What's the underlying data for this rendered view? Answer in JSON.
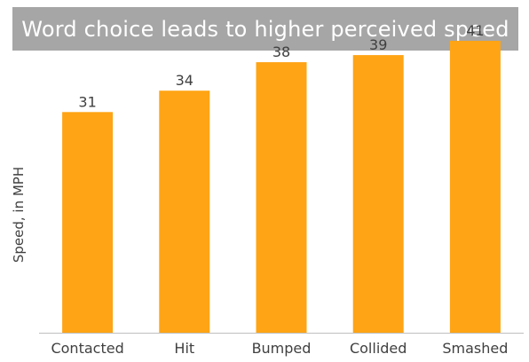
{
  "chart_data": {
    "type": "bar",
    "title": "Word choice leads to higher perceived speed",
    "xlabel": "",
    "ylabel": "Speed, in MPH",
    "categories": [
      "Contacted",
      "Hit",
      "Bumped",
      "Collided",
      "Smashed"
    ],
    "values": [
      31,
      34,
      38,
      39,
      41
    ],
    "data_labels": [
      "31",
      "34",
      "38",
      "39",
      "41"
    ],
    "ylim": [
      0,
      43
    ],
    "grid": false,
    "legend": "none",
    "bar_color": "#ffa414",
    "axis_color": "#bfbfbf",
    "title_background": "#a6a6a6"
  }
}
